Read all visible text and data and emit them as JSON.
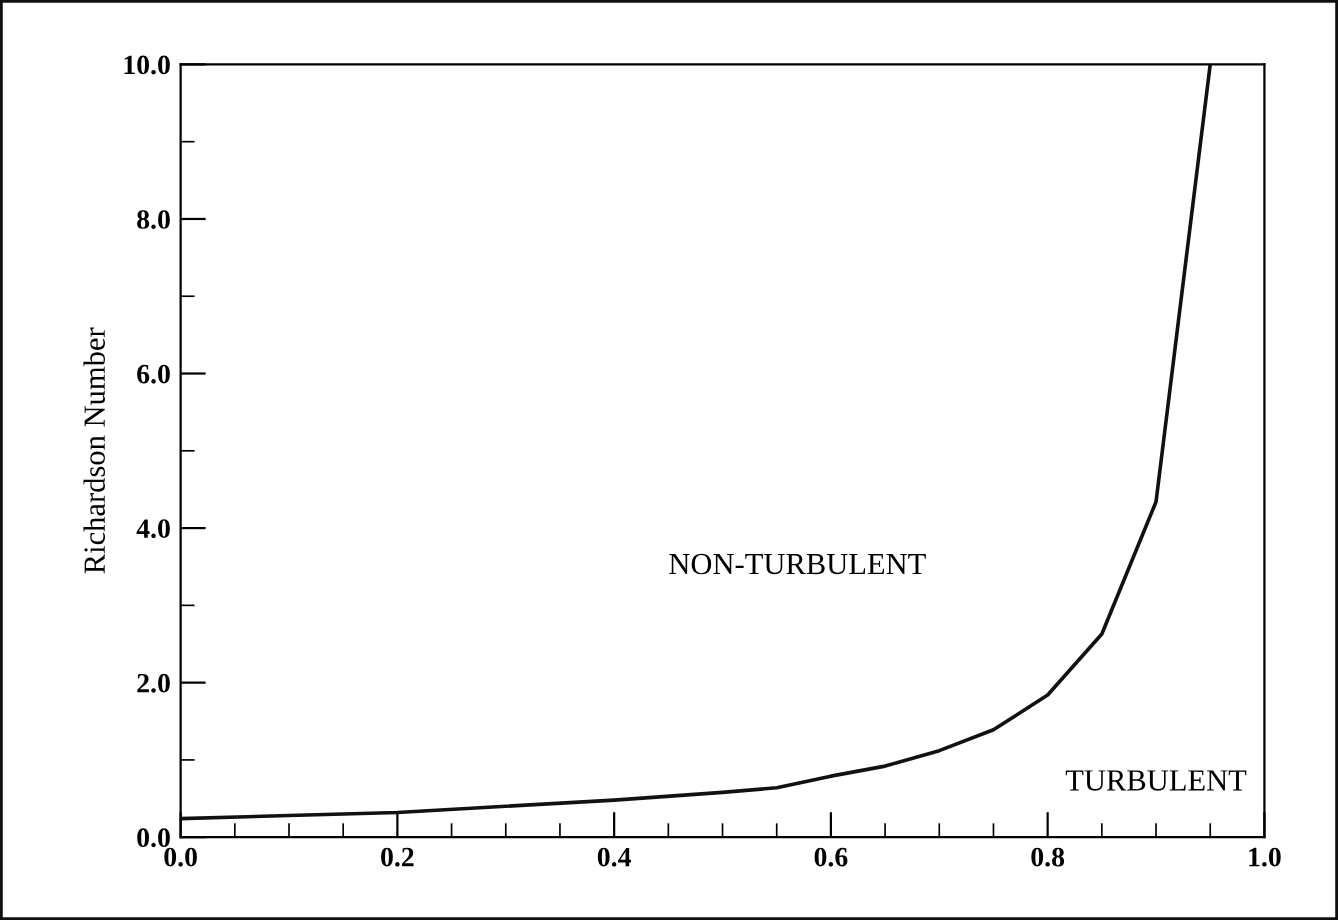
{
  "chart_data": {
    "type": "line",
    "ylabel": "Richardson Number",
    "x": [
      0.0,
      0.1,
      0.2,
      0.3,
      0.4,
      0.5,
      0.55,
      0.6,
      0.65,
      0.7,
      0.75,
      0.8,
      0.85,
      0.9,
      0.95
    ],
    "series": [
      {
        "color": "#111111",
        "values": [
          0.24,
          0.28,
          0.32,
          0.4,
          0.48,
          0.58,
          0.64,
          0.79,
          0.92,
          1.12,
          1.39,
          1.84,
          2.63,
          4.34,
          10.0
        ]
      }
    ],
    "xlim": [
      0.0,
      1.0
    ],
    "ylim": [
      0.0,
      10.0
    ],
    "xticks": [
      {
        "value": 0.0,
        "label": "0.0"
      },
      {
        "value": 0.2,
        "label": "0.2"
      },
      {
        "value": 0.4,
        "label": "0.4"
      },
      {
        "value": 0.6,
        "label": "0.6"
      },
      {
        "value": 0.8,
        "label": "0.8"
      },
      {
        "value": 1.0,
        "label": "1.0"
      }
    ],
    "yticks": [
      {
        "value": 0.0,
        "label": "0.0"
      },
      {
        "value": 2.0,
        "label": "2.0"
      },
      {
        "value": 4.0,
        "label": "4.0"
      },
      {
        "value": 6.0,
        "label": "6.0"
      },
      {
        "value": 8.0,
        "label": "8.0"
      },
      {
        "value": 10.0,
        "label": "10.0"
      }
    ],
    "annotations": [
      "NON-TURBULENT",
      "TURBULENT"
    ],
    "grid": false,
    "marker": "none",
    "line_style": "solid"
  }
}
